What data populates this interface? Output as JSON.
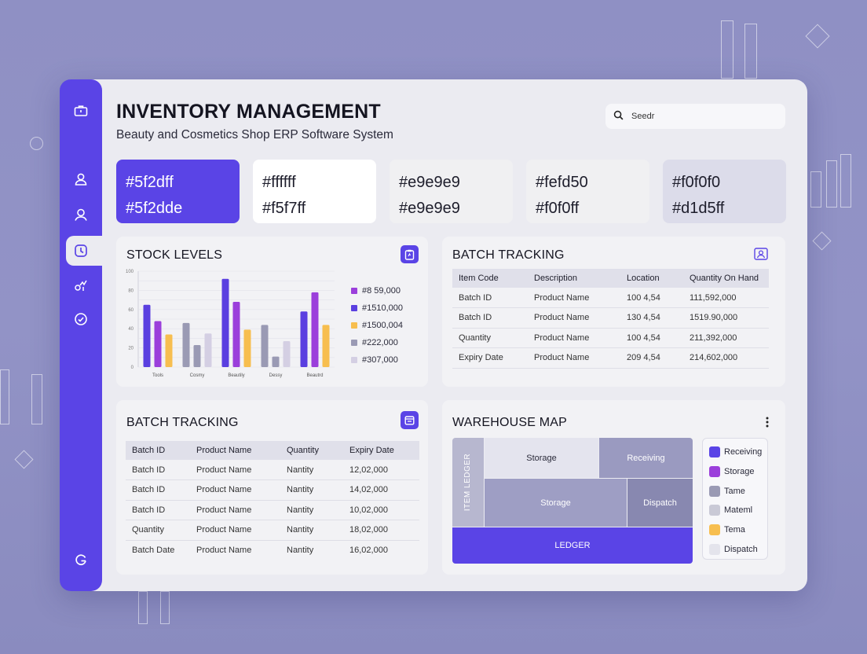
{
  "header": {
    "title": "INVENTORY MANAGEMENT",
    "subtitle": "Beauty and Cosmetics Shop ERP Software System"
  },
  "search": {
    "value": "Seedr",
    "icon": "search-icon"
  },
  "sidebar": {
    "items": [
      {
        "icon": "briefcase-icon"
      },
      {
        "icon": "user-icon"
      },
      {
        "icon": "user-circle-icon"
      },
      {
        "icon": "clock-icon"
      },
      {
        "icon": "analytics-icon"
      },
      {
        "icon": "circle-check-icon"
      },
      {
        "icon": "settings-icon"
      }
    ],
    "active_index": 3
  },
  "swatches": [
    {
      "line1": "#5f2dff",
      "line2": "#5f2dde",
      "bg": "#5a44e6",
      "fg": "#ffffff"
    },
    {
      "line1": "#ffffff",
      "line2": "#f5f7ff",
      "bg": "#ffffff",
      "fg": "#1d1d2b"
    },
    {
      "line1": "#e9e9e9",
      "line2": "#e9e9e9",
      "bg": "#f0f0f2",
      "fg": "#1d1d2b"
    },
    {
      "line1": "#fefd50",
      "line2": "#f0f0ff",
      "bg": "#f0f0f2",
      "fg": "#1d1d2b"
    },
    {
      "line1": "#f0f0f0",
      "line2": "#d1d5ff",
      "bg": "#dcdcea",
      "fg": "#1d1d2b"
    }
  ],
  "stock_levels": {
    "title": "STOCK LEVELS",
    "legend": [
      {
        "label": "#8 59,000",
        "color": "#9b3fdb"
      },
      {
        "label": "#1510,000",
        "color": "#5a3fe0"
      },
      {
        "label": "#1500,004",
        "color": "#f7be4f"
      },
      {
        "label": "#222,000",
        "color": "#9a9ab4"
      },
      {
        "label": "#307,000",
        "color": "#d4cfe3"
      }
    ]
  },
  "chart_data": {
    "type": "bar",
    "categories": [
      "Tools",
      "Cosmy",
      "Beautily",
      "Dessy",
      "Beautrd"
    ],
    "ylim": [
      0,
      100
    ],
    "yticks": [
      "0",
      "10",
      "20",
      "30",
      "40",
      "50",
      "60",
      "70",
      "80",
      "90",
      "100"
    ],
    "series": [
      {
        "color": "#5a3fe0",
        "values": [
          65,
          0,
          92,
          0,
          58
        ]
      },
      {
        "color": "#9b3fdb",
        "values": [
          48,
          0,
          68,
          0,
          78
        ]
      },
      {
        "color": "#f7be4f",
        "values": [
          34,
          0,
          39,
          0,
          44
        ]
      },
      {
        "color": "#9a9ab4",
        "values": [
          0,
          46,
          0,
          44,
          0
        ]
      },
      {
        "color": "#9a9ab4",
        "values": [
          0,
          23,
          0,
          11,
          0
        ]
      },
      {
        "color": "#d4cfe3",
        "values": [
          0,
          35,
          0,
          27,
          0
        ]
      }
    ]
  },
  "batch_tracking_top": {
    "title": "BATCH TRACKING",
    "columns": [
      "Item Code",
      "Description",
      "Location",
      "Quantity On Hand"
    ],
    "rows": [
      [
        "Batch ID",
        "Product Name",
        "100 4,54",
        "111,592,000"
      ],
      [
        "Batch ID",
        "Product Name",
        "130 4,54",
        "1519.90,000"
      ],
      [
        "Quantity",
        "Product Name",
        "100 4,54",
        "211,392,000"
      ],
      [
        "Expiry Date",
        "Product Name",
        "209 4,54",
        "214,602,000"
      ]
    ]
  },
  "batch_tracking_bottom": {
    "title": "BATCH TRACKING",
    "columns": [
      "Batch ID",
      "Product Name",
      "Quantity",
      "Expiry Date"
    ],
    "rows": [
      [
        "Batch ID",
        "Product Name",
        "Nantity",
        "12,02,000"
      ],
      [
        "Batch ID",
        "Product Name",
        "Nantity",
        "14,02,000"
      ],
      [
        "Batch ID",
        "Product Name",
        "Nantity",
        "10,02,000"
      ],
      [
        "Quantity",
        "Product Name",
        "Nantity",
        "18,02,000"
      ],
      [
        "Batch Date",
        "Product Name",
        "Nantity",
        "16,02,000"
      ]
    ]
  },
  "warehouse_map": {
    "title": "WAREHOUSE MAP",
    "menu_icon": "more-vertical-icon",
    "zones": {
      "side": "ITEM LEDGER",
      "storage_top": "Storage",
      "receiving": "Receiving",
      "storage_mid": "Storage",
      "dispatch": "Dispatch",
      "ledger": "LEDGER"
    },
    "legend": [
      {
        "label": "Receiving",
        "color": "#5a44e6"
      },
      {
        "label": "Storage",
        "color": "#9b3fdb"
      },
      {
        "label": "Tame",
        "color": "#9a9ab4"
      },
      {
        "label": "Mateml",
        "color": "#c9c9d6"
      },
      {
        "label": "Tema",
        "color": "#f7be4f"
      },
      {
        "label": "Dispatch",
        "color": "#e4e4ec"
      }
    ]
  }
}
